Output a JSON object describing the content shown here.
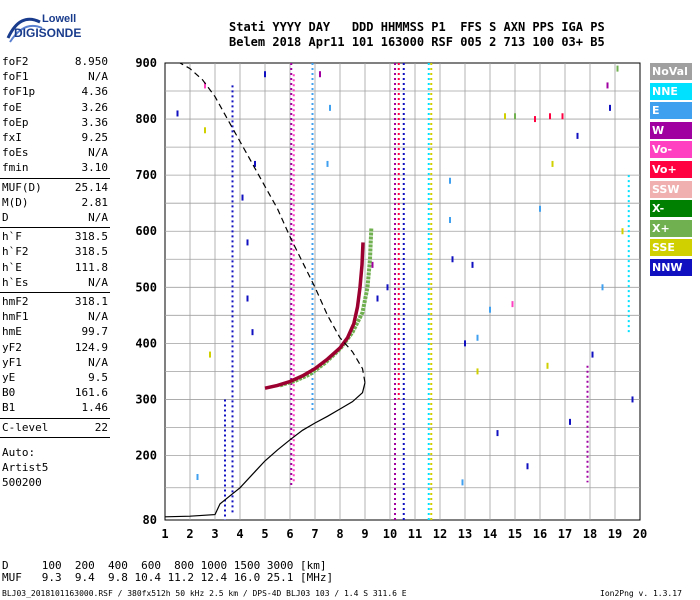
{
  "header": {
    "line1": "Stati YYYY DAY   DDD HHMMSS P1  FFS S AXN PPS IGA PS",
    "line2": "Belem 2018 Apr11 101 163000 RSF 005 2 713 100 03+ B5"
  },
  "logo": {
    "line1": "Lowell",
    "line2": "DIGISONDE",
    "color": "#1a3c8c"
  },
  "params": [
    {
      "label": "foF2",
      "value": "8.950"
    },
    {
      "label": "foF1",
      "value": "N/A"
    },
    {
      "label": "foF1p",
      "value": "4.36"
    },
    {
      "label": "foE",
      "value": "3.26"
    },
    {
      "label": "foEp",
      "value": "3.36"
    },
    {
      "label": "fxI",
      "value": "9.25"
    },
    {
      "label": "foEs",
      "value": "N/A"
    },
    {
      "label": "fmin",
      "value": "3.10"
    },
    {
      "label": "MUF(D)",
      "value": "25.14"
    },
    {
      "label": "M(D)",
      "value": "2.81"
    },
    {
      "label": "D",
      "value": "N/A"
    },
    {
      "label": "h`F",
      "value": "318.5"
    },
    {
      "label": "h`F2",
      "value": "318.5"
    },
    {
      "label": "h`E",
      "value": "111.8"
    },
    {
      "label": "h`Es",
      "value": "N/A"
    },
    {
      "label": "hmF2",
      "value": "318.1"
    },
    {
      "label": "hmF1",
      "value": "N/A"
    },
    {
      "label": "hmE",
      "value": "99.7"
    },
    {
      "label": "yF2",
      "value": "124.9"
    },
    {
      "label": "yF1",
      "value": "N/A"
    },
    {
      "label": "yE",
      "value": "9.5"
    },
    {
      "label": "B0",
      "value": "161.6"
    },
    {
      "label": "B1",
      "value": "1.46"
    },
    {
      "label": "C-level",
      "value": "22"
    }
  ],
  "autoscaling": {
    "line1": "Auto:",
    "line2": "Artist5",
    "line3": "500200"
  },
  "legend": [
    {
      "label": "NoVal",
      "color": "#a0a0a0"
    },
    {
      "label": "NNE",
      "color": "#00e0ff"
    },
    {
      "label": "E",
      "color": "#40a0f0"
    },
    {
      "label": "W",
      "color": "#a000a0"
    },
    {
      "label": "Vo-",
      "color": "#ff40c0"
    },
    {
      "label": "Vo+",
      "color": "#ff0040"
    },
    {
      "label": "SSW",
      "color": "#f0b0b0"
    },
    {
      "label": "X-",
      "color": "#008000"
    },
    {
      "label": "X+",
      "color": "#70b050"
    },
    {
      "label": "SSE",
      "color": "#d0d000"
    },
    {
      "label": "NNW",
      "color": "#1010c0"
    }
  ],
  "footer": {
    "d_line": "D     100  200  400  600  800 1000 1500 3000 [km]",
    "muf_line": "MUF   9.3  9.4  9.8 10.4 11.2 12.4 16.0 25.1 [MHz]",
    "info": "BLJ03_2018101163000.RSF / 380fx512h 50 kHz 2.5 km / DPS-4D BLJ03 103 / 1.4 S 311.6 E",
    "version": "Ion2Png v. 1.3.17"
  },
  "chart_data": {
    "type": "scatter",
    "xlim": [
      1,
      20
    ],
    "ylim": [
      80,
      900
    ],
    "x_ticks": [
      "1",
      "2",
      "3",
      "4",
      "5",
      "6",
      "7",
      "8",
      "9",
      "10",
      "11",
      "12",
      "13",
      "14",
      "15",
      "16",
      "17",
      "18",
      "19",
      "20"
    ],
    "y_ticks": [
      "80",
      "200",
      "300",
      "400",
      "500",
      "600",
      "700",
      "800",
      "900"
    ],
    "y_tick_values": [
      80,
      200,
      300,
      400,
      500,
      600,
      700,
      800,
      900
    ],
    "grid": true,
    "o_trace": [
      [
        5.0,
        320
      ],
      [
        5.5,
        325
      ],
      [
        6.0,
        332
      ],
      [
        6.5,
        342
      ],
      [
        7.0,
        355
      ],
      [
        7.5,
        372
      ],
      [
        8.0,
        392
      ],
      [
        8.3,
        410
      ],
      [
        8.55,
        435
      ],
      [
        8.7,
        465
      ],
      [
        8.8,
        500
      ],
      [
        8.88,
        540
      ],
      [
        8.92,
        580
      ]
    ],
    "x_trace": [
      [
        5.6,
        325
      ],
      [
        6.2,
        333
      ],
      [
        6.8,
        345
      ],
      [
        7.4,
        365
      ],
      [
        8.0,
        390
      ],
      [
        8.5,
        420
      ],
      [
        8.9,
        455
      ],
      [
        9.1,
        500
      ],
      [
        9.2,
        550
      ],
      [
        9.25,
        605
      ]
    ],
    "profile": [
      [
        1.0,
        86
      ],
      [
        2.0,
        87
      ],
      [
        3.0,
        90
      ],
      [
        3.2,
        110
      ],
      [
        3.6,
        125
      ],
      [
        4.0,
        140
      ],
      [
        4.5,
        165
      ],
      [
        5.0,
        190
      ],
      [
        5.5,
        210
      ],
      [
        6.0,
        228
      ],
      [
        6.5,
        245
      ],
      [
        7.0,
        258
      ],
      [
        7.5,
        270
      ],
      [
        8.0,
        283
      ],
      [
        8.5,
        296
      ],
      [
        8.9,
        312
      ],
      [
        9.0,
        330
      ]
    ],
    "profile_upper": [
      [
        9.0,
        330
      ],
      [
        8.9,
        355
      ],
      [
        8.5,
        385
      ],
      [
        8.0,
        410
      ],
      [
        7.5,
        450
      ],
      [
        7.0,
        500
      ],
      [
        6.5,
        545
      ],
      [
        6.0,
        590
      ],
      [
        5.5,
        640
      ],
      [
        5.0,
        680
      ],
      [
        4.5,
        720
      ],
      [
        4.0,
        760
      ],
      [
        3.5,
        800
      ],
      [
        3.0,
        840
      ],
      [
        2.5,
        870
      ],
      [
        2.0,
        890
      ],
      [
        1.6,
        900
      ]
    ],
    "vertical_echoes": [
      {
        "x": 3.4,
        "y0": 80,
        "y1": 300,
        "color": "#1010c0"
      },
      {
        "x": 3.7,
        "y0": 90,
        "y1": 860,
        "color": "#1010c0"
      },
      {
        "x": 6.05,
        "y0": 140,
        "y1": 900,
        "color": "#a000a0"
      },
      {
        "x": 6.15,
        "y0": 150,
        "y1": 880,
        "color": "#ff40c0"
      },
      {
        "x": 6.9,
        "y0": 280,
        "y1": 900,
        "color": "#40a0f0"
      },
      {
        "x": 10.2,
        "y0": 80,
        "y1": 900,
        "color": "#a000a0"
      },
      {
        "x": 10.35,
        "y0": 300,
        "y1": 900,
        "color": "#ff0040"
      },
      {
        "x": 10.55,
        "y0": 80,
        "y1": 900,
        "color": "#1010c0"
      },
      {
        "x": 11.55,
        "y0": 80,
        "y1": 900,
        "color": "#00e0ff"
      },
      {
        "x": 11.65,
        "y0": 80,
        "y1": 900,
        "color": "#d0d000"
      },
      {
        "x": 17.9,
        "y0": 150,
        "y1": 360,
        "color": "#a000a0"
      },
      {
        "x": 19.55,
        "y0": 420,
        "y1": 700,
        "color": "#00e0ff"
      }
    ],
    "scatter_points": [
      {
        "x": 2.6,
        "y": 860,
        "color": "#ff40c0"
      },
      {
        "x": 2.6,
        "y": 780,
        "color": "#d0d000"
      },
      {
        "x": 2.8,
        "y": 380,
        "color": "#d0d000"
      },
      {
        "x": 4.3,
        "y": 480,
        "color": "#1010c0"
      },
      {
        "x": 4.5,
        "y": 420,
        "color": "#1010c0"
      },
      {
        "x": 4.1,
        "y": 660,
        "color": "#1010c0"
      },
      {
        "x": 4.6,
        "y": 720,
        "color": "#1010c0"
      },
      {
        "x": 4.3,
        "y": 580,
        "color": "#1010c0"
      },
      {
        "x": 5.0,
        "y": 880,
        "color": "#1010c0"
      },
      {
        "x": 7.2,
        "y": 880,
        "color": "#a000a0"
      },
      {
        "x": 7.5,
        "y": 720,
        "color": "#40a0f0"
      },
      {
        "x": 9.3,
        "y": 540,
        "color": "#a000a0"
      },
      {
        "x": 9.5,
        "y": 480,
        "color": "#1010c0"
      },
      {
        "x": 9.9,
        "y": 500,
        "color": "#1010c0"
      },
      {
        "x": 12.4,
        "y": 690,
        "color": "#40a0f0"
      },
      {
        "x": 12.5,
        "y": 550,
        "color": "#1010c0"
      },
      {
        "x": 13.0,
        "y": 400,
        "color": "#1010c0"
      },
      {
        "x": 13.5,
        "y": 410,
        "color": "#40a0f0"
      },
      {
        "x": 14.6,
        "y": 805,
        "color": "#d0d000"
      },
      {
        "x": 15.0,
        "y": 805,
        "color": "#70b050"
      },
      {
        "x": 16.4,
        "y": 805,
        "color": "#ff0040"
      },
      {
        "x": 16.9,
        "y": 805,
        "color": "#ff0040"
      },
      {
        "x": 15.8,
        "y": 800,
        "color": "#ff0040"
      },
      {
        "x": 16.5,
        "y": 720,
        "color": "#d0d000"
      },
      {
        "x": 14.0,
        "y": 460,
        "color": "#40a0f0"
      },
      {
        "x": 12.4,
        "y": 620,
        "color": "#40a0f0"
      },
      {
        "x": 15.5,
        "y": 180,
        "color": "#1010c0"
      },
      {
        "x": 16.3,
        "y": 360,
        "color": "#d0d000"
      },
      {
        "x": 18.1,
        "y": 380,
        "color": "#1010c0"
      },
      {
        "x": 18.8,
        "y": 820,
        "color": "#1010c0"
      },
      {
        "x": 18.7,
        "y": 860,
        "color": "#a000a0"
      },
      {
        "x": 19.7,
        "y": 300,
        "color": "#1010c0"
      },
      {
        "x": 19.1,
        "y": 890,
        "color": "#70b050"
      },
      {
        "x": 17.2,
        "y": 260,
        "color": "#1010c0"
      },
      {
        "x": 13.5,
        "y": 350,
        "color": "#d0d000"
      },
      {
        "x": 14.3,
        "y": 240,
        "color": "#1010c0"
      },
      {
        "x": 16.0,
        "y": 640,
        "color": "#40a0f0"
      },
      {
        "x": 17.5,
        "y": 770,
        "color": "#1010c0"
      },
      {
        "x": 12.9,
        "y": 150,
        "color": "#40a0f0"
      },
      {
        "x": 13.3,
        "y": 540,
        "color": "#1010c0"
      },
      {
        "x": 2.3,
        "y": 160,
        "color": "#40a0f0"
      },
      {
        "x": 1.5,
        "y": 810,
        "color": "#1010c0"
      },
      {
        "x": 7.6,
        "y": 820,
        "color": "#40a0f0"
      },
      {
        "x": 14.9,
        "y": 470,
        "color": "#ff40c0"
      },
      {
        "x": 18.5,
        "y": 500,
        "color": "#40a0f0"
      },
      {
        "x": 19.3,
        "y": 600,
        "color": "#d0d000"
      }
    ]
  }
}
